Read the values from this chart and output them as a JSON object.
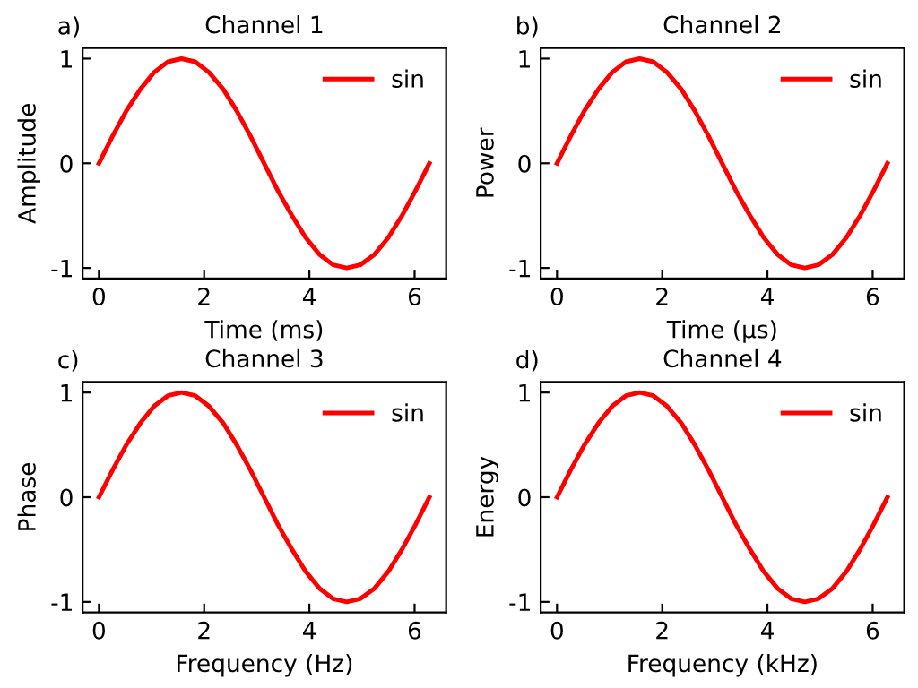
{
  "chart_data": [
    {
      "type": "line",
      "title": "Channel 1",
      "xlabel": "Time (ms)",
      "ylabel": "Amplitude",
      "annotations": [
        "a)"
      ],
      "x": [
        0,
        0.26,
        0.52,
        0.79,
        1.05,
        1.31,
        1.57,
        1.83,
        2.09,
        2.36,
        2.62,
        2.88,
        3.14,
        3.4,
        3.67,
        3.93,
        4.19,
        4.45,
        4.71,
        4.97,
        5.24,
        5.5,
        5.76,
        6.02,
        6.28
      ],
      "series": [
        {
          "name": "sin",
          "color": "#ff0000",
          "values": [
            0,
            0.26,
            0.5,
            0.71,
            0.87,
            0.97,
            1,
            0.97,
            0.87,
            0.71,
            0.5,
            0.26,
            0,
            -0.26,
            -0.5,
            -0.71,
            -0.87,
            -0.97,
            -1,
            -0.97,
            -0.87,
            -0.71,
            -0.5,
            -0.26,
            0
          ]
        }
      ],
      "xlim": [
        -0.31,
        6.6
      ],
      "ylim": [
        -1.1,
        1.1
      ],
      "xticks": [
        0,
        2,
        4,
        6
      ],
      "yticks": [
        -1,
        0,
        1
      ],
      "grid": false,
      "legend": "top right",
      "marker": "none",
      "line_style": "solid"
    },
    {
      "type": "line",
      "title": "Channel 2",
      "xlabel": "Time (μs)",
      "ylabel": "Power",
      "annotations": [
        "b)"
      ],
      "x": [
        0,
        0.26,
        0.52,
        0.79,
        1.05,
        1.31,
        1.57,
        1.83,
        2.09,
        2.36,
        2.62,
        2.88,
        3.14,
        3.4,
        3.67,
        3.93,
        4.19,
        4.45,
        4.71,
        4.97,
        5.24,
        5.5,
        5.76,
        6.02,
        6.28
      ],
      "series": [
        {
          "name": "sin",
          "color": "#ff0000",
          "values": [
            0,
            0.26,
            0.5,
            0.71,
            0.87,
            0.97,
            1,
            0.97,
            0.87,
            0.71,
            0.5,
            0.26,
            0,
            -0.26,
            -0.5,
            -0.71,
            -0.87,
            -0.97,
            -1,
            -0.97,
            -0.87,
            -0.71,
            -0.5,
            -0.26,
            0
          ]
        }
      ],
      "xlim": [
        -0.31,
        6.6
      ],
      "ylim": [
        -1.1,
        1.1
      ],
      "xticks": [
        0,
        2,
        4,
        6
      ],
      "yticks": [
        -1,
        0,
        1
      ],
      "grid": false,
      "legend": "top right",
      "marker": "none",
      "line_style": "solid"
    },
    {
      "type": "line",
      "title": "Channel 3",
      "xlabel": "Frequency (Hz)",
      "ylabel": "Phase",
      "annotations": [
        "c)"
      ],
      "x": [
        0,
        0.26,
        0.52,
        0.79,
        1.05,
        1.31,
        1.57,
        1.83,
        2.09,
        2.36,
        2.62,
        2.88,
        3.14,
        3.4,
        3.67,
        3.93,
        4.19,
        4.45,
        4.71,
        4.97,
        5.24,
        5.5,
        5.76,
        6.02,
        6.28
      ],
      "series": [
        {
          "name": "sin",
          "color": "#ff0000",
          "values": [
            0,
            0.26,
            0.5,
            0.71,
            0.87,
            0.97,
            1,
            0.97,
            0.87,
            0.71,
            0.5,
            0.26,
            0,
            -0.26,
            -0.5,
            -0.71,
            -0.87,
            -0.97,
            -1,
            -0.97,
            -0.87,
            -0.71,
            -0.5,
            -0.26,
            0
          ]
        }
      ],
      "xlim": [
        -0.31,
        6.6
      ],
      "ylim": [
        -1.1,
        1.1
      ],
      "xticks": [
        0,
        2,
        4,
        6
      ],
      "yticks": [
        -1,
        0,
        1
      ],
      "grid": false,
      "legend": "top right",
      "marker": "none",
      "line_style": "solid"
    },
    {
      "type": "line",
      "title": "Channel 4",
      "xlabel": "Frequency (kHz)",
      "ylabel": "Energy",
      "annotations": [
        "d)"
      ],
      "x": [
        0,
        0.26,
        0.52,
        0.79,
        1.05,
        1.31,
        1.57,
        1.83,
        2.09,
        2.36,
        2.62,
        2.88,
        3.14,
        3.4,
        3.67,
        3.93,
        4.19,
        4.45,
        4.71,
        4.97,
        5.24,
        5.5,
        5.76,
        6.02,
        6.28
      ],
      "series": [
        {
          "name": "sin",
          "color": "#ff0000",
          "values": [
            0,
            0.26,
            0.5,
            0.71,
            0.87,
            0.97,
            1,
            0.97,
            0.87,
            0.71,
            0.5,
            0.26,
            0,
            -0.26,
            -0.5,
            -0.71,
            -0.87,
            -0.97,
            -1,
            -0.97,
            -0.87,
            -0.71,
            -0.5,
            -0.26,
            0
          ]
        }
      ],
      "xlim": [
        -0.31,
        6.6
      ],
      "ylim": [
        -1.1,
        1.1
      ],
      "xticks": [
        0,
        2,
        4,
        6
      ],
      "yticks": [
        -1,
        0,
        1
      ],
      "grid": false,
      "legend": "top right",
      "marker": "none",
      "line_style": "solid"
    }
  ]
}
